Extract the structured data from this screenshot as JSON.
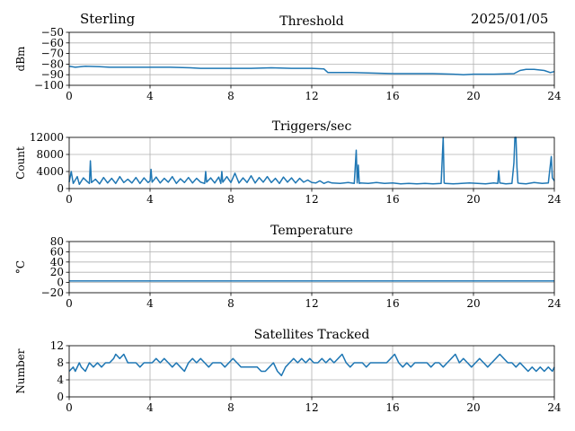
{
  "header": {
    "station": "Sterling",
    "date": "2025/01/05"
  },
  "line_color": "#1f77b4",
  "chart_data": [
    {
      "type": "line",
      "title": "Threshold",
      "ylabel": "dBm",
      "xlim": [
        0,
        24
      ],
      "ylim": [
        -100,
        -50
      ],
      "x_ticks": [
        0,
        4,
        8,
        12,
        16,
        20,
        24
      ],
      "y_ticks": [
        -100,
        -90,
        -80,
        -70,
        -60,
        -50
      ],
      "y_tick_labels": [
        "−100",
        "−90",
        "−80",
        "−70",
        "−60",
        "−50"
      ],
      "grid": true,
      "series": [
        {
          "x": [
            0,
            0.3,
            0.8,
            1.5,
            2,
            3,
            4,
            5,
            6,
            6.5,
            7,
            8,
            9,
            10,
            11,
            12,
            12.6,
            12.8,
            13,
            14,
            15,
            16,
            17,
            18,
            19,
            19.5,
            20,
            21,
            22,
            22.3,
            22.6,
            23,
            23.5,
            23.8,
            24
          ],
          "y": [
            -82,
            -83,
            -82,
            -82.5,
            -83,
            -83,
            -83,
            -83,
            -83.5,
            -84,
            -84,
            -84,
            -84,
            -83.5,
            -84,
            -84,
            -84.5,
            -88,
            -88,
            -88,
            -88.5,
            -89,
            -89,
            -89,
            -89.5,
            -90,
            -89.5,
            -89.5,
            -89,
            -86,
            -85,
            -85,
            -86,
            -88,
            -87
          ]
        }
      ]
    },
    {
      "type": "line",
      "title": "Triggers/sec",
      "ylabel": "Count",
      "xlim": [
        0,
        24
      ],
      "ylim": [
        0,
        12000
      ],
      "x_ticks": [
        0,
        4,
        8,
        12,
        16,
        20,
        24
      ],
      "y_ticks": [
        0,
        4000,
        8000,
        12000
      ],
      "y_tick_labels": [
        "0",
        "4000",
        "8000",
        "12000"
      ],
      "grid": true,
      "series": [
        {
          "x": [
            0,
            0.1,
            0.2,
            0.4,
            0.5,
            0.7,
            0.9,
            1.0,
            1.05,
            1.1,
            1.3,
            1.5,
            1.7,
            1.9,
            2.1,
            2.3,
            2.5,
            2.7,
            2.9,
            3.1,
            3.3,
            3.5,
            3.7,
            3.9,
            4.0,
            4.05,
            4.1,
            4.3,
            4.5,
            4.7,
            4.9,
            5.1,
            5.3,
            5.5,
            5.7,
            5.9,
            6.1,
            6.3,
            6.5,
            6.7,
            6.75,
            6.8,
            7.0,
            7.2,
            7.4,
            7.5,
            7.55,
            7.6,
            7.8,
            8.0,
            8.2,
            8.4,
            8.6,
            8.8,
            9.0,
            9.2,
            9.4,
            9.6,
            9.8,
            10.0,
            10.2,
            10.4,
            10.6,
            10.8,
            11.0,
            11.2,
            11.4,
            11.6,
            11.8,
            12.0,
            12.2,
            12.4,
            12.6,
            12.8,
            13.0,
            13.4,
            13.8,
            14.1,
            14.2,
            14.25,
            14.3,
            14.35,
            14.4,
            14.8,
            15.2,
            15.6,
            16.0,
            16.4,
            16.8,
            17.2,
            17.6,
            18.0,
            18.4,
            18.5,
            18.55,
            18.6,
            19.0,
            19.4,
            19.8,
            20.2,
            20.6,
            21.0,
            21.2,
            21.25,
            21.3,
            21.6,
            21.9,
            22.0,
            22.05,
            22.1,
            22.15,
            22.2,
            22.3,
            22.6,
            23.0,
            23.4,
            23.7,
            23.85,
            23.9,
            24
          ],
          "y": [
            1500,
            4000,
            1200,
            2800,
            1000,
            2500,
            1600,
            1200,
            6500,
            1400,
            2200,
            1100,
            2600,
            1300,
            2400,
            1200,
            2800,
            1400,
            2200,
            1300,
            2600,
            1200,
            2500,
            1400,
            1800,
            4500,
            1500,
            2700,
            1300,
            2400,
            1500,
            2800,
            1200,
            2300,
            1400,
            2600,
            1300,
            2400,
            1500,
            1200,
            4000,
            1500,
            2500,
            1300,
            2700,
            1200,
            4000,
            1500,
            2800,
            1400,
            3600,
            1300,
            2500,
            1400,
            3000,
            1300,
            2600,
            1500,
            2800,
            1400,
            2400,
            1200,
            2700,
            1500,
            2500,
            1300,
            2400,
            1500,
            2000,
            1400,
            1300,
            1800,
            1200,
            1600,
            1300,
            1200,
            1400,
            1200,
            9000,
            1300,
            5500,
            1200,
            1300,
            1200,
            1400,
            1200,
            1300,
            1100,
            1200,
            1100,
            1200,
            1100,
            1200,
            12000,
            1300,
            1200,
            1100,
            1200,
            1300,
            1200,
            1100,
            1300,
            1200,
            4200,
            1300,
            1100,
            1200,
            6000,
            12000,
            12000,
            5000,
            1300,
            1200,
            1100,
            1400,
            1200,
            1300,
            7500,
            2500,
            1800
          ]
        }
      ]
    },
    {
      "type": "line",
      "title": "Temperature",
      "ylabel": "°C",
      "xlim": [
        0,
        24
      ],
      "ylim": [
        -20,
        80
      ],
      "x_ticks": [
        0,
        4,
        8,
        12,
        16,
        20,
        24
      ],
      "y_ticks": [
        -20,
        0,
        20,
        40,
        60,
        80
      ],
      "y_tick_labels": [
        "−20",
        "0",
        "20",
        "40",
        "60",
        "80"
      ],
      "grid": true,
      "series": [
        {
          "x": [
            0,
            24
          ],
          "y": [
            3,
            3
          ]
        }
      ]
    },
    {
      "type": "line",
      "title": "Satellites Tracked",
      "ylabel": "Number",
      "xlim": [
        0,
        24
      ],
      "ylim": [
        0,
        12
      ],
      "x_ticks": [
        0,
        4,
        8,
        12,
        16,
        20,
        24
      ],
      "y_ticks": [
        0,
        4,
        8,
        12
      ],
      "y_tick_labels": [
        "0",
        "4",
        "8",
        "12"
      ],
      "grid": true,
      "series": [
        {
          "x": [
            0,
            0.2,
            0.3,
            0.5,
            0.6,
            0.8,
            1.0,
            1.2,
            1.4,
            1.6,
            1.8,
            2.0,
            2.2,
            2.3,
            2.5,
            2.7,
            2.9,
            3.1,
            3.3,
            3.5,
            3.7,
            3.9,
            4.1,
            4.3,
            4.5,
            4.7,
            4.9,
            5.1,
            5.3,
            5.5,
            5.7,
            5.9,
            6.1,
            6.3,
            6.5,
            6.7,
            6.9,
            7.1,
            7.3,
            7.5,
            7.7,
            7.9,
            8.1,
            8.3,
            8.5,
            8.7,
            8.9,
            9.1,
            9.3,
            9.5,
            9.7,
            9.9,
            10.1,
            10.3,
            10.5,
            10.7,
            10.9,
            11.1,
            11.3,
            11.5,
            11.7,
            11.9,
            12.1,
            12.3,
            12.5,
            12.7,
            12.9,
            13.1,
            13.3,
            13.5,
            13.7,
            13.9,
            14.1,
            14.3,
            14.5,
            14.7,
            14.9,
            15.1,
            15.3,
            15.5,
            15.7,
            15.9,
            16.1,
            16.3,
            16.5,
            16.7,
            16.9,
            17.1,
            17.3,
            17.5,
            17.7,
            17.9,
            18.1,
            18.3,
            18.5,
            18.7,
            18.9,
            19.1,
            19.3,
            19.5,
            19.7,
            19.9,
            20.1,
            20.3,
            20.5,
            20.7,
            20.9,
            21.1,
            21.3,
            21.5,
            21.7,
            21.9,
            22.1,
            22.3,
            22.5,
            22.7,
            22.9,
            23.1,
            23.3,
            23.5,
            23.7,
            23.9,
            24
          ],
          "y": [
            6,
            7,
            6,
            8,
            7,
            6,
            8,
            7,
            8,
            7,
            8,
            8,
            9,
            10,
            9,
            10,
            8,
            8,
            8,
            7,
            8,
            8,
            8,
            9,
            8,
            9,
            8,
            7,
            8,
            7,
            6,
            8,
            9,
            8,
            9,
            8,
            7,
            8,
            8,
            8,
            7,
            8,
            9,
            8,
            7,
            7,
            7,
            7,
            7,
            6,
            6,
            7,
            8,
            6,
            5,
            7,
            8,
            9,
            8,
            9,
            8,
            9,
            8,
            8,
            9,
            8,
            9,
            8,
            9,
            10,
            8,
            7,
            8,
            8,
            8,
            7,
            8,
            8,
            8,
            8,
            8,
            9,
            10,
            8,
            7,
            8,
            7,
            8,
            8,
            8,
            8,
            7,
            8,
            8,
            7,
            8,
            9,
            10,
            8,
            9,
            8,
            7,
            8,
            9,
            8,
            7,
            8,
            9,
            10,
            9,
            8,
            8,
            7,
            8,
            7,
            6,
            7,
            6,
            7,
            6,
            7,
            6,
            7
          ]
        }
      ]
    }
  ]
}
